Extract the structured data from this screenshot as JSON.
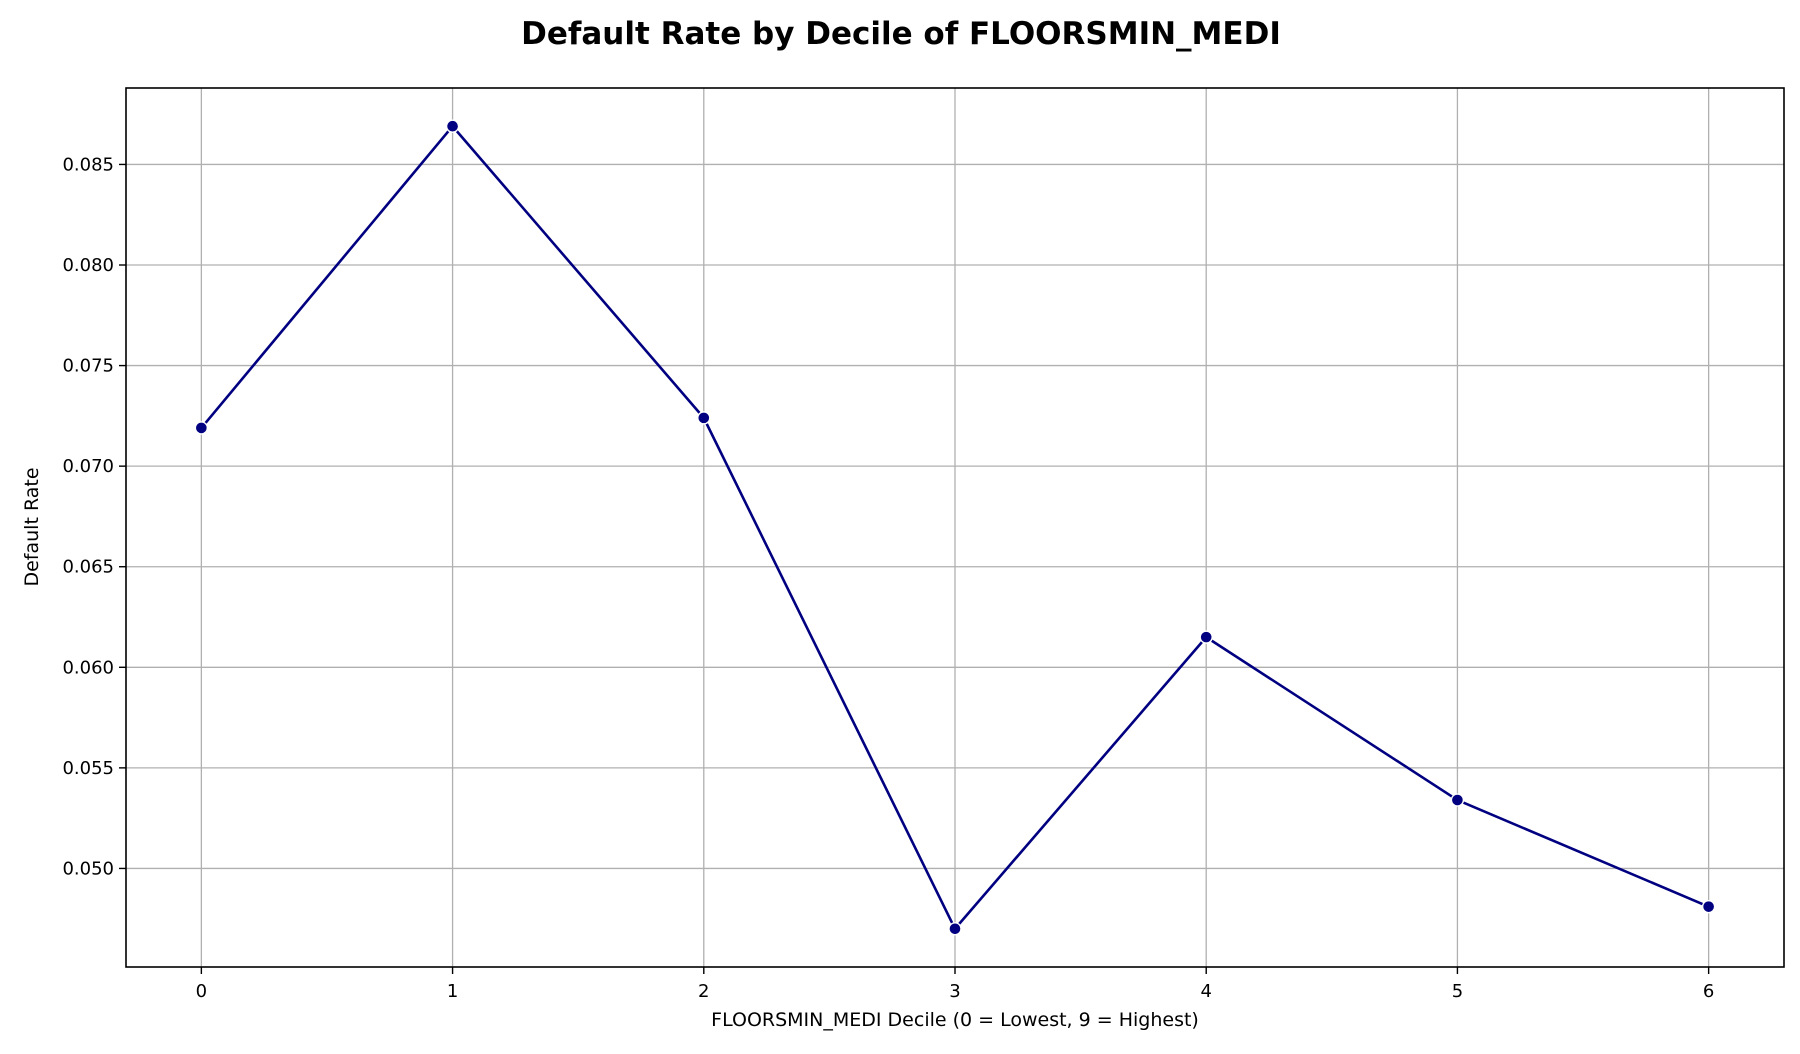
{
  "chart_data": {
    "type": "line",
    "title": "Default Rate by Decile of FLOORSMIN_MEDI",
    "xlabel": "FLOORSMIN_MEDI Decile (0 = Lowest, 9 = Highest)",
    "ylabel": "Default Rate",
    "x": [
      0,
      1,
      2,
      3,
      4,
      5,
      6
    ],
    "series": [
      {
        "values": [
          0.0719,
          0.0869,
          0.0724,
          0.047,
          0.0615,
          0.0534,
          0.0481
        ],
        "color": "#000080",
        "marker": "circle"
      }
    ],
    "xlim": [
      -0.3,
      6.3
    ],
    "ylim": [
      0.0451,
      0.0888
    ],
    "xticks": [
      0,
      1,
      2,
      3,
      4,
      5,
      6
    ],
    "xtick_labels": [
      "0",
      "1",
      "2",
      "3",
      "4",
      "5",
      "6"
    ],
    "yticks": [
      0.05,
      0.055,
      0.06,
      0.065,
      0.07,
      0.075,
      0.08,
      0.085
    ],
    "ytick_labels": [
      "0.050",
      "0.055",
      "0.060",
      "0.065",
      "0.070",
      "0.075",
      "0.080",
      "0.085"
    ],
    "grid": true,
    "legend": "none"
  }
}
